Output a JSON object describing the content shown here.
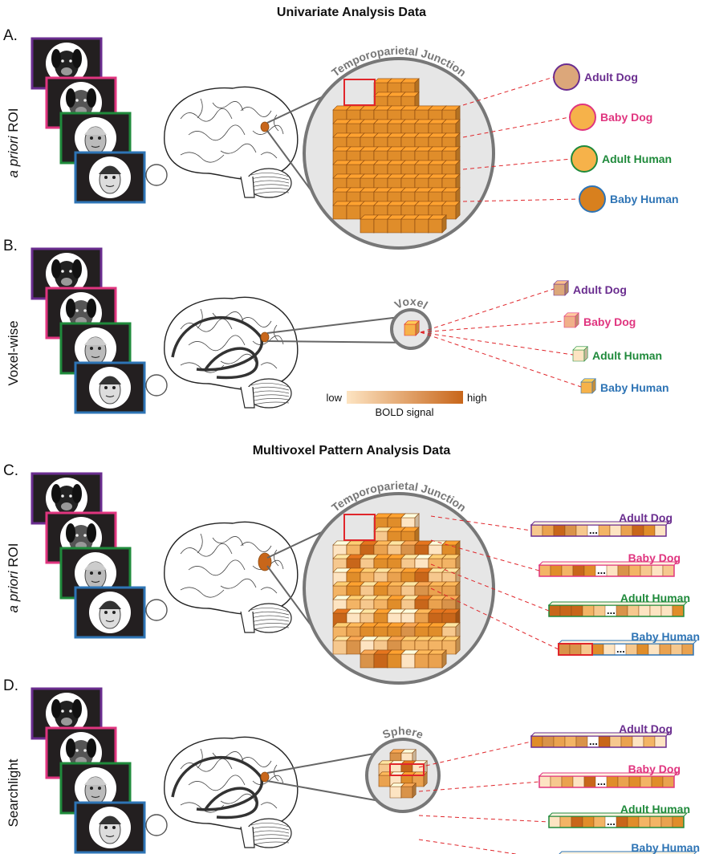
{
  "titles": {
    "univariate": "Univariate Analysis Data",
    "mvpa": "Multivoxel Pattern Analysis Data"
  },
  "panels": [
    {
      "letter": "A.",
      "side_label_italic": "a priori",
      "side_label_rest": " ROI",
      "zoom_label": "Temporoparietal Junction"
    },
    {
      "letter": "B.",
      "side_label_italic": "",
      "side_label_rest": "Voxel-wise",
      "zoom_label": "Voxel"
    },
    {
      "letter": "C.",
      "side_label_italic": "a priori",
      "side_label_rest": " ROI",
      "zoom_label": "Temporoparietal Junction"
    },
    {
      "letter": "D.",
      "side_label_italic": "",
      "side_label_rest": "Searchlight",
      "zoom_label": "Sphere"
    }
  ],
  "conditions": [
    {
      "name": "Adult Dog",
      "color": "#6a2d8f"
    },
    {
      "name": "Baby Dog",
      "color": "#e0357f"
    },
    {
      "name": "Adult Human",
      "color": "#1f8a3b"
    },
    {
      "name": "Baby Human",
      "color": "#2e74b5"
    }
  ],
  "colorbar": {
    "low": "low",
    "high": "high",
    "caption": "BOLD signal",
    "low_color": "#fde4c2",
    "high_color": "#c8661a"
  },
  "highlight_color": "#e0262b",
  "ellipsis": "..."
}
